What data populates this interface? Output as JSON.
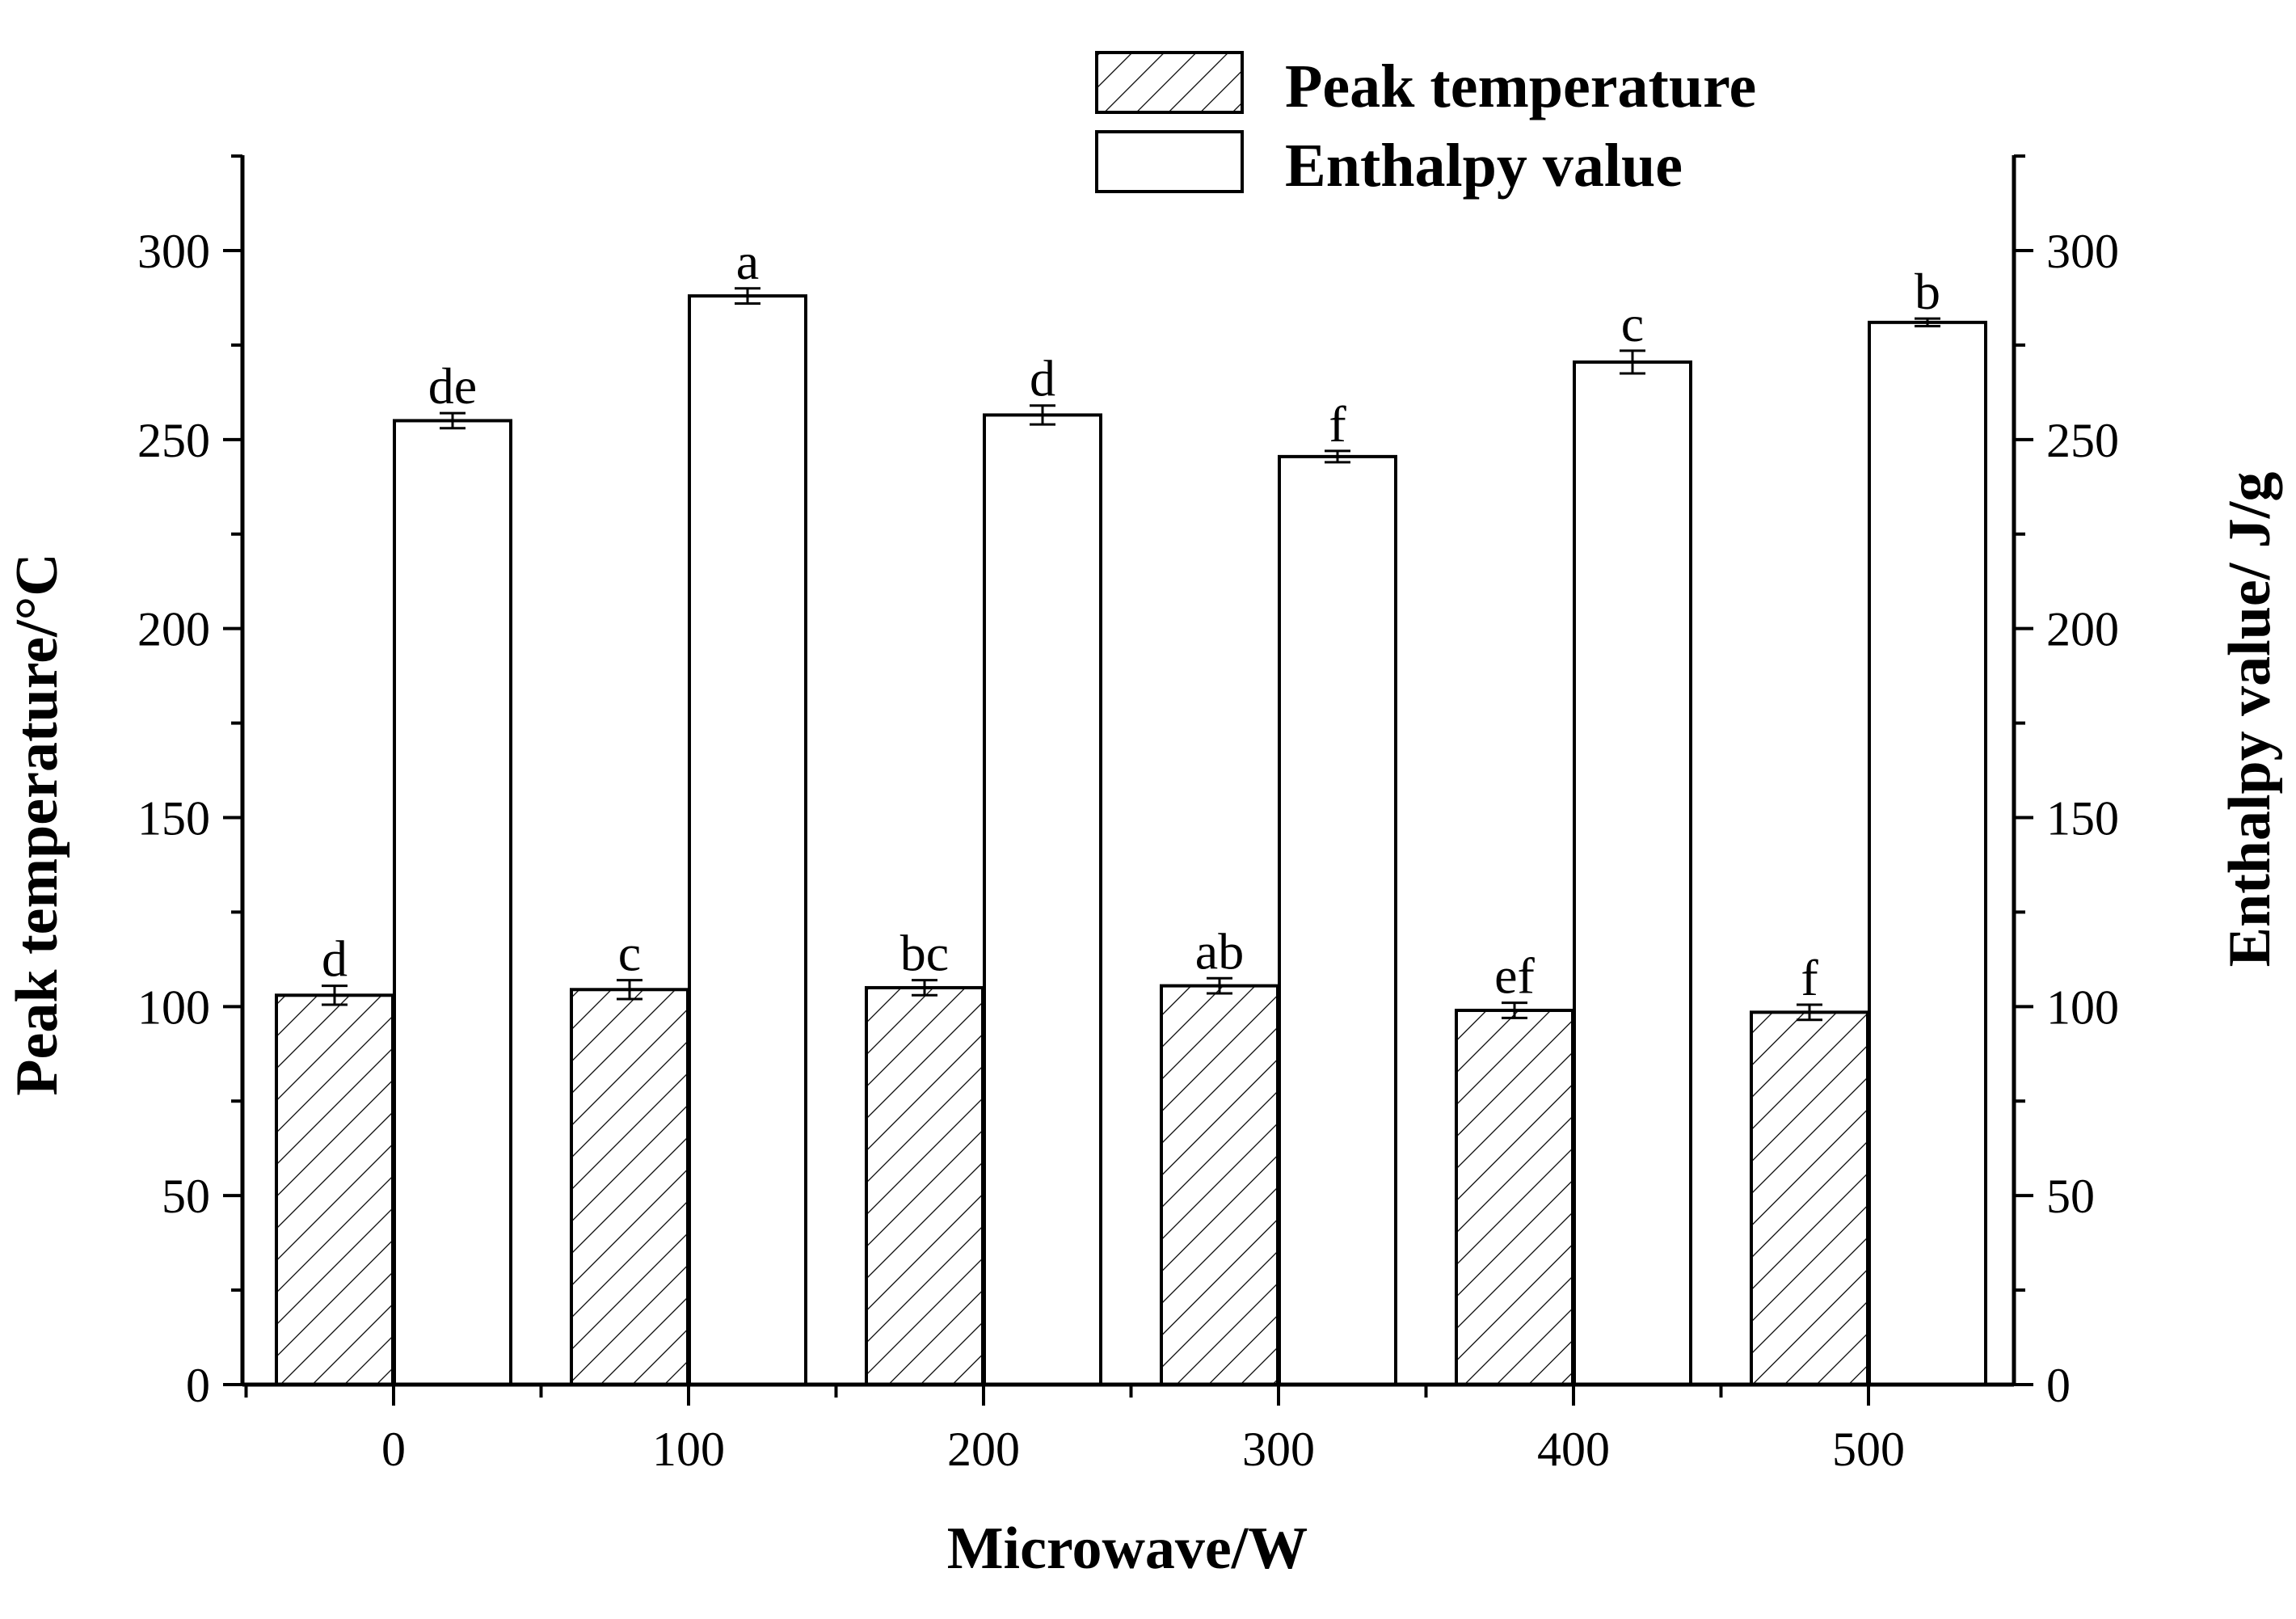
{
  "chart_data": {
    "type": "bar",
    "title": "",
    "xlabel": "Microwave/W",
    "ylabel_left": "Peak temperature/°C",
    "ylabel_right": "Enthalpy value/ J/g",
    "categories": [
      "0",
      "100",
      "200",
      "300",
      "400",
      "500"
    ],
    "ylim": [
      0,
      325
    ],
    "yticks": [
      "0",
      "50",
      "100",
      "150",
      "200",
      "250",
      "300"
    ],
    "series": [
      {
        "name": "Peak temperature",
        "pattern": "hatched",
        "values": [
          103,
          104.5,
          105,
          105.5,
          99,
          98.5
        ],
        "errors": [
          2.5,
          2.5,
          2,
          2,
          2,
          2
        ],
        "labels": [
          "d",
          "c",
          "bc",
          "ab",
          "ef",
          "f"
        ]
      },
      {
        "name": "Enthalpy value",
        "pattern": "open",
        "values": [
          255,
          288,
          256.5,
          245.5,
          270.5,
          281
        ],
        "errors": [
          2,
          2,
          2.5,
          1.5,
          3,
          1
        ],
        "labels": [
          "de",
          "a",
          "d",
          "f",
          "c",
          "b"
        ]
      }
    ],
    "legend": "top-center",
    "grid": false
  }
}
